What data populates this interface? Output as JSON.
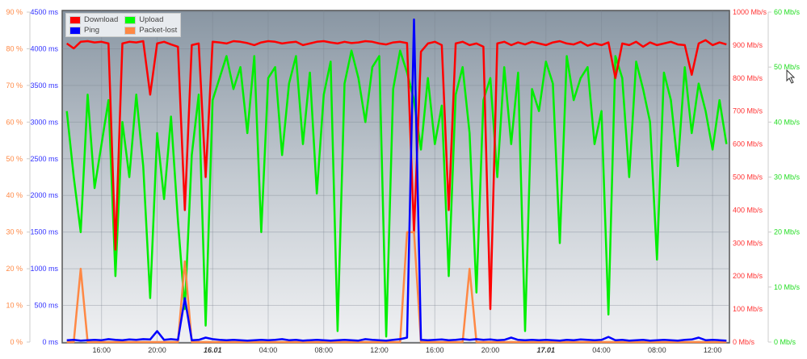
{
  "chart_data": {
    "type": "line",
    "legend_position": "top-left",
    "grid": true,
    "colors": {
      "Download": "#ff0000",
      "Upload": "#00ee00",
      "Ping": "#0000ff",
      "Packet-lost": "#ff8844"
    },
    "axes": {
      "packet_loss": {
        "unit": "%",
        "range": [
          0,
          90
        ],
        "ticks": [
          "0 %",
          "10 %",
          "20 %",
          "30 %",
          "40 %",
          "50 %",
          "60 %",
          "70 %",
          "80 %",
          "90 %"
        ],
        "color": "#ff8844"
      },
      "ping": {
        "unit": "ms",
        "range": [
          0,
          4500
        ],
        "ticks": [
          "0 ms",
          "500 ms",
          "1000 ms",
          "1500 ms",
          "2000 ms",
          "2500 ms",
          "3000 ms",
          "3500 ms",
          "4000 ms",
          "4500 ms"
        ],
        "color": "#3333ff"
      },
      "download": {
        "unit": "Mb/s",
        "range": [
          0,
          1000
        ],
        "ticks": [
          "0 Mb/s",
          "100 Mb/s",
          "200 Mb/s",
          "300 Mb/s",
          "400 Mb/s",
          "500 Mb/s",
          "600 Mb/s",
          "700 Mb/s",
          "800 Mb/s",
          "900 Mb/s",
          "1000 Mb/s"
        ],
        "color": "#ff3333"
      },
      "upload": {
        "unit": "Mb/s",
        "range": [
          0,
          60
        ],
        "ticks": [
          "0 Mb/s",
          "10 Mb/s",
          "20 Mb/s",
          "30 Mb/s",
          "40 Mb/s",
          "50 Mb/s",
          "60 Mb/s"
        ],
        "color": "#22dd22"
      }
    },
    "x_range": [
      "15.01 13:10",
      "17.01 13:13"
    ],
    "x_ticks": [
      {
        "t": "15.01 16:00",
        "label": "16:00"
      },
      {
        "t": "15.01 20:00",
        "label": "20:00"
      },
      {
        "t": "16.01 00:00",
        "label": "16.01",
        "bold": true
      },
      {
        "t": "16.01 04:00",
        "label": "04:00"
      },
      {
        "t": "16.01 08:00",
        "label": "08:00"
      },
      {
        "t": "16.01 12:00",
        "label": "12:00"
      },
      {
        "t": "16.01 16:00",
        "label": "16:00"
      },
      {
        "t": "16.01 20:00",
        "label": "20:00"
      },
      {
        "t": "17.01 00:00",
        "label": "17.01",
        "bold": true
      },
      {
        "t": "17.01 04:00",
        "label": "04:00"
      },
      {
        "t": "17.01 08:00",
        "label": "08:00"
      },
      {
        "t": "17.01 12:00",
        "label": "12:00"
      }
    ],
    "x": [
      "15.01 13:30",
      "15.01 14:00",
      "15.01 14:30",
      "15.01 15:00",
      "15.01 15:30",
      "15.01 16:00",
      "15.01 16:30",
      "15.01 17:00",
      "15.01 17:30",
      "15.01 18:00",
      "15.01 18:30",
      "15.01 19:00",
      "15.01 19:30",
      "15.01 20:00",
      "15.01 20:30",
      "15.01 21:00",
      "15.01 21:30",
      "15.01 22:00",
      "15.01 22:30",
      "15.01 23:00",
      "15.01 23:30",
      "16.01 00:00",
      "16.01 00:30",
      "16.01 01:00",
      "16.01 01:30",
      "16.01 02:00",
      "16.01 02:30",
      "16.01 03:00",
      "16.01 03:30",
      "16.01 04:00",
      "16.01 04:30",
      "16.01 05:00",
      "16.01 05:30",
      "16.01 06:00",
      "16.01 06:30",
      "16.01 07:00",
      "16.01 07:30",
      "16.01 08:00",
      "16.01 08:30",
      "16.01 09:00",
      "16.01 09:30",
      "16.01 10:00",
      "16.01 10:30",
      "16.01 11:00",
      "16.01 11:30",
      "16.01 12:00",
      "16.01 12:30",
      "16.01 13:00",
      "16.01 13:30",
      "16.01 14:00",
      "16.01 14:30",
      "16.01 15:00",
      "16.01 15:30",
      "16.01 16:00",
      "16.01 16:30",
      "16.01 17:00",
      "16.01 17:30",
      "16.01 18:00",
      "16.01 18:30",
      "16.01 19:00",
      "16.01 19:30",
      "16.01 20:00",
      "16.01 20:30",
      "16.01 21:00",
      "16.01 21:30",
      "16.01 22:00",
      "16.01 22:30",
      "16.01 23:00",
      "16.01 23:30",
      "17.01 00:00",
      "17.01 00:30",
      "17.01 01:00",
      "17.01 01:30",
      "17.01 02:00",
      "17.01 02:30",
      "17.01 03:00",
      "17.01 03:30",
      "17.01 04:00",
      "17.01 04:30",
      "17.01 05:00",
      "17.01 05:30",
      "17.01 06:00",
      "17.01 06:30",
      "17.01 07:00",
      "17.01 07:30",
      "17.01 08:00",
      "17.01 08:30",
      "17.01 09:00",
      "17.01 09:30",
      "17.01 10:00",
      "17.01 10:30",
      "17.01 11:00",
      "17.01 11:30",
      "17.01 12:00",
      "17.01 12:30",
      "17.01 13:00"
    ],
    "series": [
      {
        "name": "Download",
        "axis": "download",
        "values": [
          905,
          890,
          910,
          912,
          908,
          910,
          905,
          280,
          905,
          910,
          908,
          912,
          750,
          905,
          910,
          902,
          895,
          400,
          900,
          905,
          500,
          910,
          908,
          905,
          912,
          910,
          906,
          900,
          908,
          912,
          910,
          905,
          908,
          910,
          900,
          905,
          910,
          912,
          908,
          905,
          910,
          906,
          908,
          912,
          910,
          905,
          902,
          908,
          910,
          906,
          330,
          880,
          905,
          910,
          900,
          400,
          905,
          910,
          900,
          905,
          895,
          100,
          905,
          910,
          900,
          908,
          902,
          910,
          905,
          900,
          908,
          912,
          905,
          902,
          910,
          898,
          905,
          900,
          908,
          800,
          905,
          900,
          910,
          895,
          908,
          900,
          905,
          910,
          902,
          900,
          810,
          905,
          915,
          900,
          908,
          902
        ]
      },
      {
        "name": "Upload",
        "axis": "upload",
        "values": [
          42,
          30,
          20,
          45,
          28,
          36,
          44,
          12,
          40,
          30,
          45,
          32,
          8,
          38,
          26,
          41,
          22,
          6,
          34,
          45,
          3,
          44,
          48,
          52,
          46,
          50,
          38,
          52,
          20,
          48,
          50,
          34,
          47,
          52,
          36,
          49,
          27,
          45,
          51,
          2,
          47,
          53,
          48,
          40,
          50,
          52,
          1,
          46,
          53,
          49,
          44,
          35,
          48,
          36,
          43,
          12,
          45,
          50,
          38,
          9,
          44,
          48,
          30,
          50,
          36,
          49,
          2,
          46,
          42,
          51,
          47,
          18,
          52,
          44,
          48,
          50,
          36,
          42,
          5,
          52,
          48,
          30,
          51,
          46,
          40,
          15,
          49,
          44,
          32,
          50,
          38,
          47,
          42,
          35,
          44,
          36
        ]
      },
      {
        "name": "Ping",
        "axis": "ping",
        "values": [
          25,
          30,
          20,
          25,
          30,
          25,
          40,
          30,
          25,
          35,
          30,
          40,
          35,
          150,
          30,
          40,
          30,
          600,
          25,
          30,
          60,
          40,
          30,
          25,
          30,
          25,
          20,
          25,
          30,
          25,
          30,
          40,
          25,
          30,
          20,
          25,
          30,
          25,
          20,
          25,
          30,
          25,
          20,
          40,
          30,
          25,
          20,
          30,
          40,
          60,
          4400,
          30,
          25,
          30,
          35,
          25,
          30,
          40,
          30,
          40,
          30,
          35,
          25,
          30,
          60,
          30,
          25,
          30,
          25,
          30,
          25,
          20,
          30,
          25,
          35,
          30,
          25,
          30,
          70,
          25,
          30,
          20,
          25,
          30,
          20,
          25,
          30,
          25,
          20,
          30,
          35,
          60,
          25,
          30,
          25,
          20
        ]
      },
      {
        "name": "Packet-lost",
        "axis": "packet_loss",
        "values": [
          0,
          0,
          20,
          0,
          0,
          0,
          0,
          0,
          0,
          0,
          0,
          0,
          0,
          0,
          0,
          0,
          0,
          22,
          0,
          0,
          0,
          0,
          0,
          0,
          0,
          0,
          0,
          0,
          0,
          0,
          0,
          0,
          0,
          0,
          0,
          0,
          0,
          0,
          0,
          0,
          0,
          0,
          0,
          0,
          0,
          0,
          0,
          0,
          0,
          30,
          30,
          0,
          0,
          0,
          0,
          0,
          0,
          0,
          20,
          0,
          0,
          0,
          0,
          0,
          0,
          0,
          0,
          0,
          0,
          0,
          0,
          0,
          0,
          0,
          0,
          0,
          0,
          0,
          0,
          0,
          0,
          0,
          0,
          0,
          0,
          0,
          0,
          0,
          0,
          0,
          0,
          0,
          0,
          0,
          0,
          0
        ]
      }
    ]
  },
  "legend": {
    "download": "Download",
    "upload": "Upload",
    "ping": "Ping",
    "packet_lost": "Packet-lost"
  }
}
